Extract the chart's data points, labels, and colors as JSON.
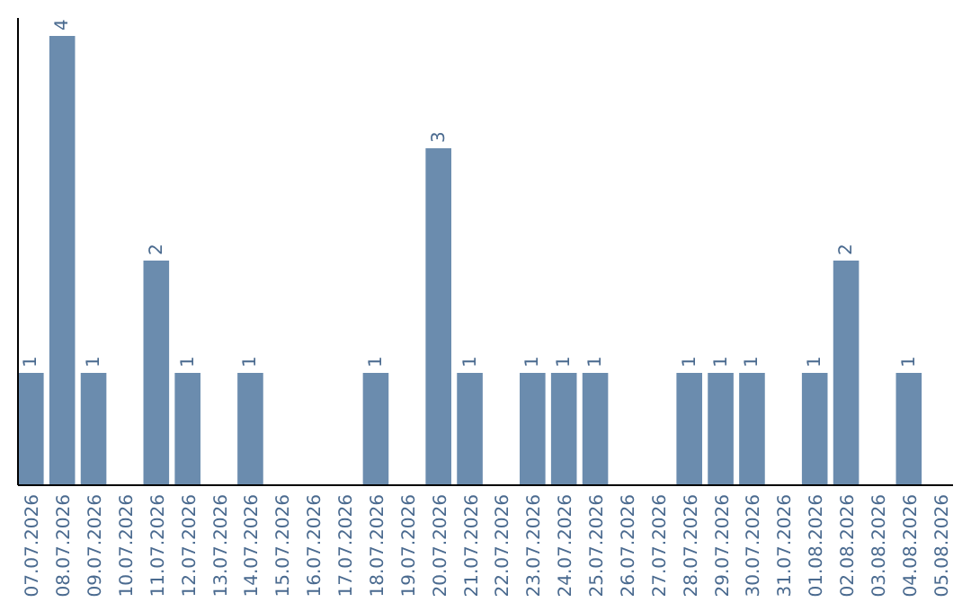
{
  "chart_data": {
    "type": "bar",
    "categories": [
      "07.07.2026",
      "08.07.2026",
      "09.07.2026",
      "10.07.2026",
      "11.07.2026",
      "12.07.2026",
      "13.07.2026",
      "14.07.2026",
      "15.07.2026",
      "16.07.2026",
      "17.07.2026",
      "18.07.2026",
      "19.07.2026",
      "20.07.2026",
      "21.07.2026",
      "22.07.2026",
      "23.07.2026",
      "24.07.2026",
      "25.07.2026",
      "26.07.2026",
      "27.07.2026",
      "28.07.2026",
      "29.07.2026",
      "30.07.2026",
      "31.07.2026",
      "01.08.2026",
      "02.08.2026",
      "03.08.2026",
      "04.08.2026",
      "05.08.2026"
    ],
    "values": [
      1,
      4,
      1,
      0,
      2,
      1,
      0,
      1,
      0,
      0,
      0,
      1,
      0,
      3,
      1,
      0,
      1,
      1,
      1,
      0,
      0,
      1,
      1,
      1,
      0,
      1,
      2,
      0,
      1,
      0
    ],
    "value_labels": [
      "1",
      "4",
      "1",
      null,
      "2",
      "1",
      null,
      "1",
      null,
      null,
      null,
      "1",
      null,
      "3",
      "1",
      null,
      "1",
      "1",
      "1",
      null,
      null,
      "1",
      "1",
      "1",
      null,
      "1",
      "2",
      null,
      "1",
      null
    ],
    "color": "#6b8cae",
    "tick_labels": "x"
  }
}
